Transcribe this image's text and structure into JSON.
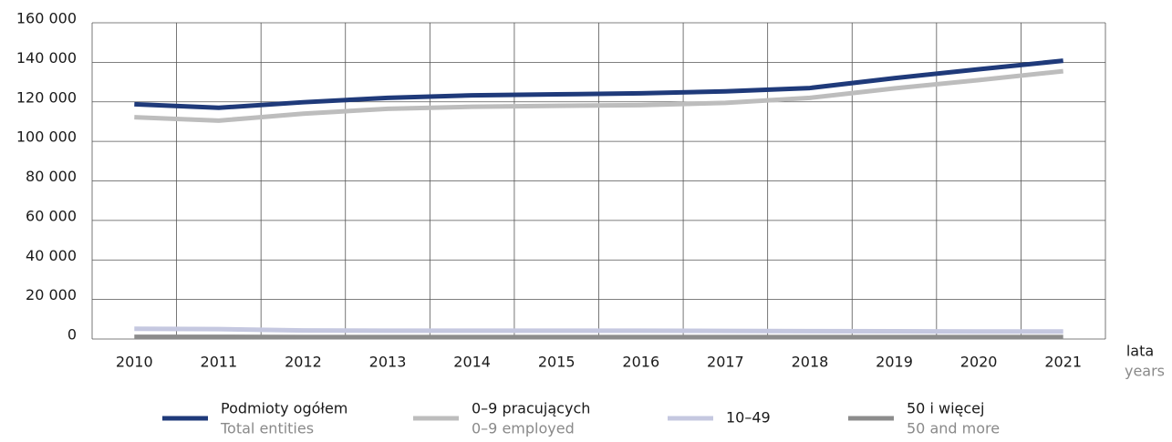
{
  "chart_data": {
    "type": "line",
    "categories": [
      "2010",
      "2011",
      "2012",
      "2013",
      "2014",
      "2015",
      "2016",
      "2017",
      "2018",
      "2019",
      "2020",
      "2021"
    ],
    "x_label": "lata",
    "x_label_en": "years",
    "series": [
      {
        "name": "Podmioty ogółem",
        "name_en": "Total entities",
        "color": "#1f3a7a",
        "values": [
          118800,
          117000,
          119800,
          122000,
          123300,
          123800,
          124300,
          125300,
          127000,
          132000,
          136500,
          140800
        ]
      },
      {
        "name": "0–9 pracujących",
        "name_en": "0–9 employed",
        "color": "#bdbdbd",
        "values": [
          112200,
          110500,
          114000,
          116500,
          117500,
          118000,
          118300,
          119500,
          122000,
          126800,
          131000,
          135500
        ]
      },
      {
        "name": "10–49",
        "color": "#c5c8e0",
        "values": [
          5200,
          5000,
          4300,
          4200,
          4200,
          4200,
          4200,
          4100,
          4000,
          3900,
          3800,
          3800
        ]
      },
      {
        "name": "50 i więcej",
        "name_en": "50 and more",
        "color": "#8c8c8c",
        "values": [
          1100,
          1100,
          1000,
          1000,
          1000,
          1000,
          1000,
          1000,
          1000,
          1000,
          1000,
          1000
        ]
      }
    ],
    "ylim": [
      0,
      160000
    ],
    "yticks": [
      0,
      {
        "value": 20000,
        "label": "20 000"
      },
      {
        "value": 40000,
        "label": "40 000"
      },
      {
        "value": 60000,
        "label": "60 000"
      },
      {
        "value": 80000,
        "label": "80 000"
      },
      {
        "value": 100000,
        "label": "100 000"
      },
      {
        "value": 120000,
        "label": "120 000"
      },
      {
        "value": 140000,
        "label": "140 000"
      },
      {
        "value": 160000,
        "label": "160 000"
      }
    ],
    "grid": true
  }
}
